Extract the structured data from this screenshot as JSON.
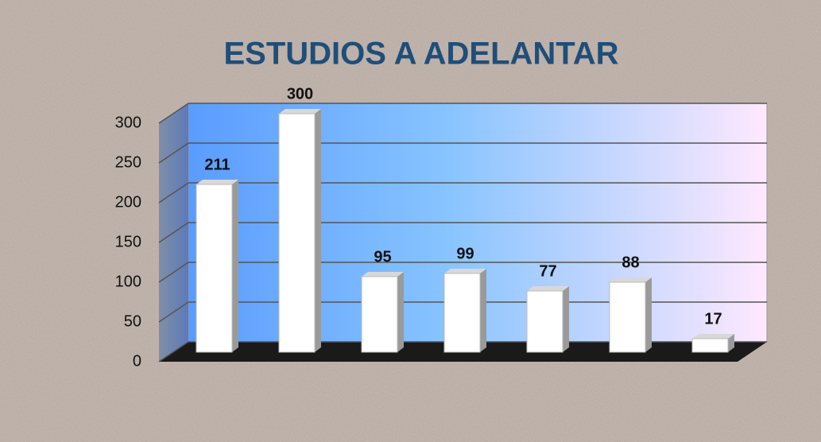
{
  "chart_data": {
    "type": "bar",
    "title": "ESTUDIOS A ADELANTAR",
    "categories": [
      null,
      null,
      null,
      null,
      null,
      null,
      null
    ],
    "values": [
      211,
      300,
      95,
      99,
      77,
      88,
      17
    ],
    "color": "#ffffff",
    "ylim": [
      0,
      300
    ],
    "yticks": [
      0,
      50,
      100,
      150,
      200,
      250,
      300
    ],
    "grid": true
  }
}
